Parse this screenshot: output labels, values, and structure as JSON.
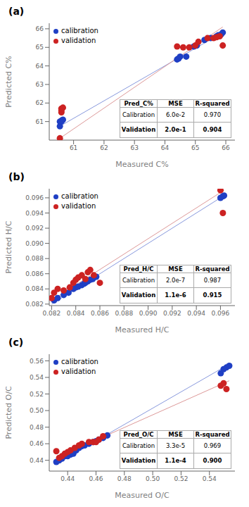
{
  "chart_data": [
    {
      "type": "scatter",
      "title": "(a)",
      "x_label": "Measured C%",
      "y_label": "Predicted C%",
      "xlim": [
        60.2,
        66.3
      ],
      "ylim": [
        60.0,
        66.3
      ],
      "xticks": [
        61,
        62,
        63,
        64,
        65,
        66
      ],
      "yticks": [
        61,
        62,
        63,
        64,
        65,
        66
      ],
      "grid": false,
      "legend": "upper left",
      "series": [
        {
          "type": "line",
          "color": "#8899dd",
          "x": [
            60.55,
            65.9
          ],
          "values": [
            60.75,
            65.8
          ]
        },
        {
          "type": "line",
          "color": "#dd9999",
          "x": [
            60.55,
            65.9
          ],
          "values": [
            60.1,
            66.1
          ]
        },
        {
          "type": "scatter",
          "name": "calibration",
          "color": "#1f3fc4",
          "marker": "circle",
          "x": [
            60.55,
            60.55,
            60.6,
            60.6,
            60.65,
            64.4,
            64.45,
            64.5,
            64.7,
            64.95,
            65.05,
            65.3,
            65.5,
            65.7,
            65.75,
            65.85,
            65.9
          ],
          "values": [
            60.75,
            61.0,
            61.0,
            61.05,
            61.1,
            64.35,
            64.4,
            64.5,
            64.5,
            65.05,
            65.1,
            65.4,
            65.5,
            65.6,
            65.65,
            65.7,
            65.8
          ]
        },
        {
          "type": "scatter",
          "name": "validation",
          "color": "#cc2222",
          "marker": "circle",
          "x": [
            60.55,
            60.6,
            60.6,
            60.6,
            60.65,
            64.4,
            64.6,
            64.8,
            65.0,
            65.1,
            65.4,
            65.6,
            65.7,
            65.8,
            65.9
          ],
          "values": [
            60.1,
            61.5,
            61.6,
            61.7,
            61.75,
            65.05,
            65.0,
            65.0,
            65.1,
            65.3,
            65.5,
            65.5,
            65.55,
            65.6,
            65.1
          ]
        }
      ],
      "table": {
        "columns": [
          "Pred_C%",
          "MSE",
          "R-squared"
        ],
        "rows": [
          [
            "Calibration",
            "6.0e-2",
            "0.970"
          ],
          [
            "Validation",
            "2.0e-1",
            "0.904"
          ]
        ]
      }
    },
    {
      "type": "scatter",
      "title": "(b)",
      "x_label": "Measured H/C",
      "y_label": "Predicted H/C",
      "xlim": [
        0.0818,
        0.0972
      ],
      "ylim": [
        0.0818,
        0.0972
      ],
      "xticks": [
        0.082,
        0.084,
        0.086,
        0.088,
        {
          "value": 0.09,
          "label": "0.090"
        },
        0.092,
        0.094,
        0.096
      ],
      "yticks": [
        0.082,
        0.084,
        0.086,
        0.088,
        {
          "value": 0.09,
          "label": "0.090"
        },
        0.092,
        0.094,
        0.096
      ],
      "grid": false,
      "legend": "upper left",
      "series": [
        {
          "type": "line",
          "color": "#8899dd",
          "x": [
            0.082,
            0.0963
          ],
          "values": [
            0.082,
            0.0963
          ]
        },
        {
          "type": "line",
          "color": "#dd9999",
          "x": [
            0.082,
            0.0963
          ],
          "values": [
            0.0825,
            0.097
          ]
        },
        {
          "type": "scatter",
          "name": "calibration",
          "color": "#1f3fc4",
          "marker": "circle",
          "x": [
            0.0822,
            0.0825,
            0.083,
            0.0834,
            0.0838,
            0.084,
            0.0842,
            0.0845,
            0.0847,
            0.0848,
            0.085,
            0.0852,
            0.0854,
            0.0855,
            0.0857,
            0.096,
            0.0962,
            0.0963
          ],
          "values": [
            0.0825,
            0.0828,
            0.0832,
            0.0835,
            0.084,
            0.0842,
            0.0843,
            0.0845,
            0.0847,
            0.0848,
            0.085,
            0.0852,
            0.0853,
            0.0855,
            0.0856,
            0.096,
            0.0962,
            0.0963
          ]
        },
        {
          "type": "scatter",
          "name": "validation",
          "color": "#cc2222",
          "marker": "circle",
          "x": [
            0.082,
            0.0822,
            0.0825,
            0.083,
            0.0835,
            0.0838,
            0.084,
            0.0842,
            0.0845,
            0.0848,
            0.085,
            0.0852,
            0.0855,
            0.086,
            0.096,
            0.0962
          ],
          "values": [
            0.0828,
            0.0835,
            0.084,
            0.0838,
            0.0842,
            0.0848,
            0.0852,
            0.0855,
            0.0858,
            0.0853,
            0.0862,
            0.0865,
            0.0858,
            0.0848,
            0.097,
            0.094
          ]
        }
      ],
      "table": {
        "columns": [
          "Pred_H/C",
          "MSE",
          "R-squared"
        ],
        "rows": [
          [
            "Calibration",
            "2.0e-7",
            "0.987"
          ],
          [
            "Validation",
            "1.1e-6",
            "0.915"
          ]
        ]
      }
    },
    {
      "type": "scatter",
      "title": "(c)",
      "x_label": "Measured O/C",
      "y_label": "Predicted O/C",
      "xlim": [
        0.427,
        0.558
      ],
      "ylim": [
        0.427,
        0.568
      ],
      "xticks": [
        0.44,
        0.46,
        0.48,
        {
          "value": 0.5,
          "label": "0.50"
        },
        0.52,
        0.54
      ],
      "yticks": [
        0.44,
        0.46,
        0.48,
        {
          "value": 0.5,
          "label": "0.50"
        },
        0.52,
        0.54,
        0.56
      ],
      "grid": false,
      "legend": "upper left",
      "series": [
        {
          "type": "line",
          "color": "#8899dd",
          "x": [
            0.432,
            0.554
          ],
          "values": [
            0.436,
            0.556
          ]
        },
        {
          "type": "line",
          "color": "#dd9999",
          "x": [
            0.432,
            0.554
          ],
          "values": [
            0.443,
            0.536
          ]
        },
        {
          "type": "scatter",
          "name": "calibration",
          "color": "#1f3fc4",
          "marker": "circle",
          "x": [
            0.432,
            0.434,
            0.436,
            0.438,
            0.44,
            0.442,
            0.444,
            0.446,
            0.448,
            0.45,
            0.452,
            0.455,
            0.458,
            0.46,
            0.462,
            0.465,
            0.468,
            0.548,
            0.55,
            0.552,
            0.554
          ],
          "values": [
            0.438,
            0.44,
            0.442,
            0.445,
            0.445,
            0.447,
            0.448,
            0.452,
            0.455,
            0.457,
            0.458,
            0.46,
            0.462,
            0.463,
            0.465,
            0.467,
            0.47,
            0.545,
            0.55,
            0.552,
            0.554
          ]
        },
        {
          "type": "scatter",
          "name": "validation",
          "color": "#cc2222",
          "marker": "circle",
          "x": [
            0.432,
            0.434,
            0.436,
            0.438,
            0.44,
            0.442,
            0.445,
            0.448,
            0.45,
            0.455,
            0.458,
            0.46,
            0.462,
            0.465,
            0.548,
            0.55,
            0.552
          ],
          "values": [
            0.451,
            0.443,
            0.445,
            0.448,
            0.45,
            0.452,
            0.455,
            0.458,
            0.46,
            0.462,
            0.462,
            0.462,
            0.465,
            0.469,
            0.53,
            0.533,
            0.526
          ]
        }
      ],
      "table": {
        "columns": [
          "Pred_O/C",
          "MSE",
          "R-squared"
        ],
        "rows": [
          [
            "Calibration",
            "3.3e-5",
            "0.969"
          ],
          [
            "Validation",
            "1.1e-4",
            "0.900"
          ]
        ]
      }
    }
  ]
}
